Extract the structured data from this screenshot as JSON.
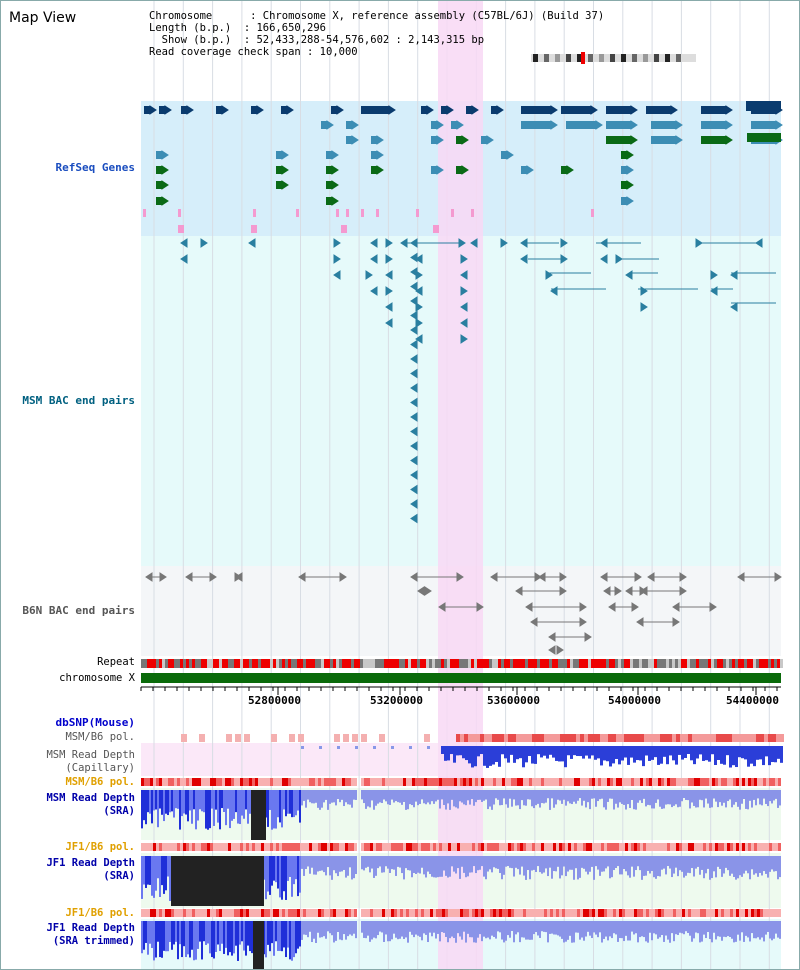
{
  "header": {
    "title": "Map View",
    "info_lines": [
      "Chromosome      : Chromosome X, reference assembly (C57BL/6J) (Build 37)",
      "Length (b.p.)  : 166,650,296",
      "  Show (b.p.)  : 52,433,288-54,576,602 : 2,143,315 bp",
      "Read coverage check span : 10,000"
    ]
  },
  "tracks": {
    "refseq": {
      "label": "RefSeq Genes",
      "color": "#1a4dbf"
    },
    "msm_bac": {
      "label": "MSM BAC end pairs",
      "color": "#006080"
    },
    "b6n_bac": {
      "label": "B6N BAC end pairs",
      "color": "#555555"
    },
    "repeat": {
      "label": "Repeat"
    },
    "chromosome": {
      "label": "chromosome X"
    },
    "dbsnp": {
      "label": "dbSNP(Mouse)",
      "color": "#0000cc"
    },
    "msm_b6_pol_1": {
      "label": "MSM/B6 pol.",
      "color": "#555555"
    },
    "msm_depth_cap": {
      "label_1": "MSM Read Depth",
      "label_2": "(Capillary)",
      "color": "#555555"
    },
    "msm_b6_pol_2": {
      "label": "MSM/B6 pol.",
      "color": "#e0a000"
    },
    "msm_depth_sra": {
      "label_1": "MSM Read Depth",
      "label_2": "(SRA)",
      "color": "#0000aa"
    },
    "jf1_b6_pol_1": {
      "label": "JF1/B6 pol.",
      "color": "#e0a000"
    },
    "jf1_depth_sra": {
      "label_1": "JF1 Read Depth",
      "label_2": "(SRA)",
      "color": "#0000aa"
    },
    "jf1_b6_pol_2": {
      "label": "JF1/B6 pol.",
      "color": "#e0a000"
    },
    "jf1_depth_trim": {
      "label_1": "JF1 Read Depth",
      "label_2": "(SRA trimmed)",
      "color": "#0000aa"
    }
  },
  "axis": {
    "ticks": [
      "52800000",
      "53200000",
      "53600000",
      "54000000",
      "54400000"
    ]
  },
  "colors": {
    "highlight": "#f8d8f4",
    "refseq_bg": "#d6eefa",
    "msm_bg": "#e6fafa",
    "b6n_bg": "#f4f6f8",
    "gene_dark": "#0a3b6e",
    "gene_mid": "#3c8db4",
    "gene_green": "#0a6a16",
    "chrom_green": "#0a6a0a"
  }
}
